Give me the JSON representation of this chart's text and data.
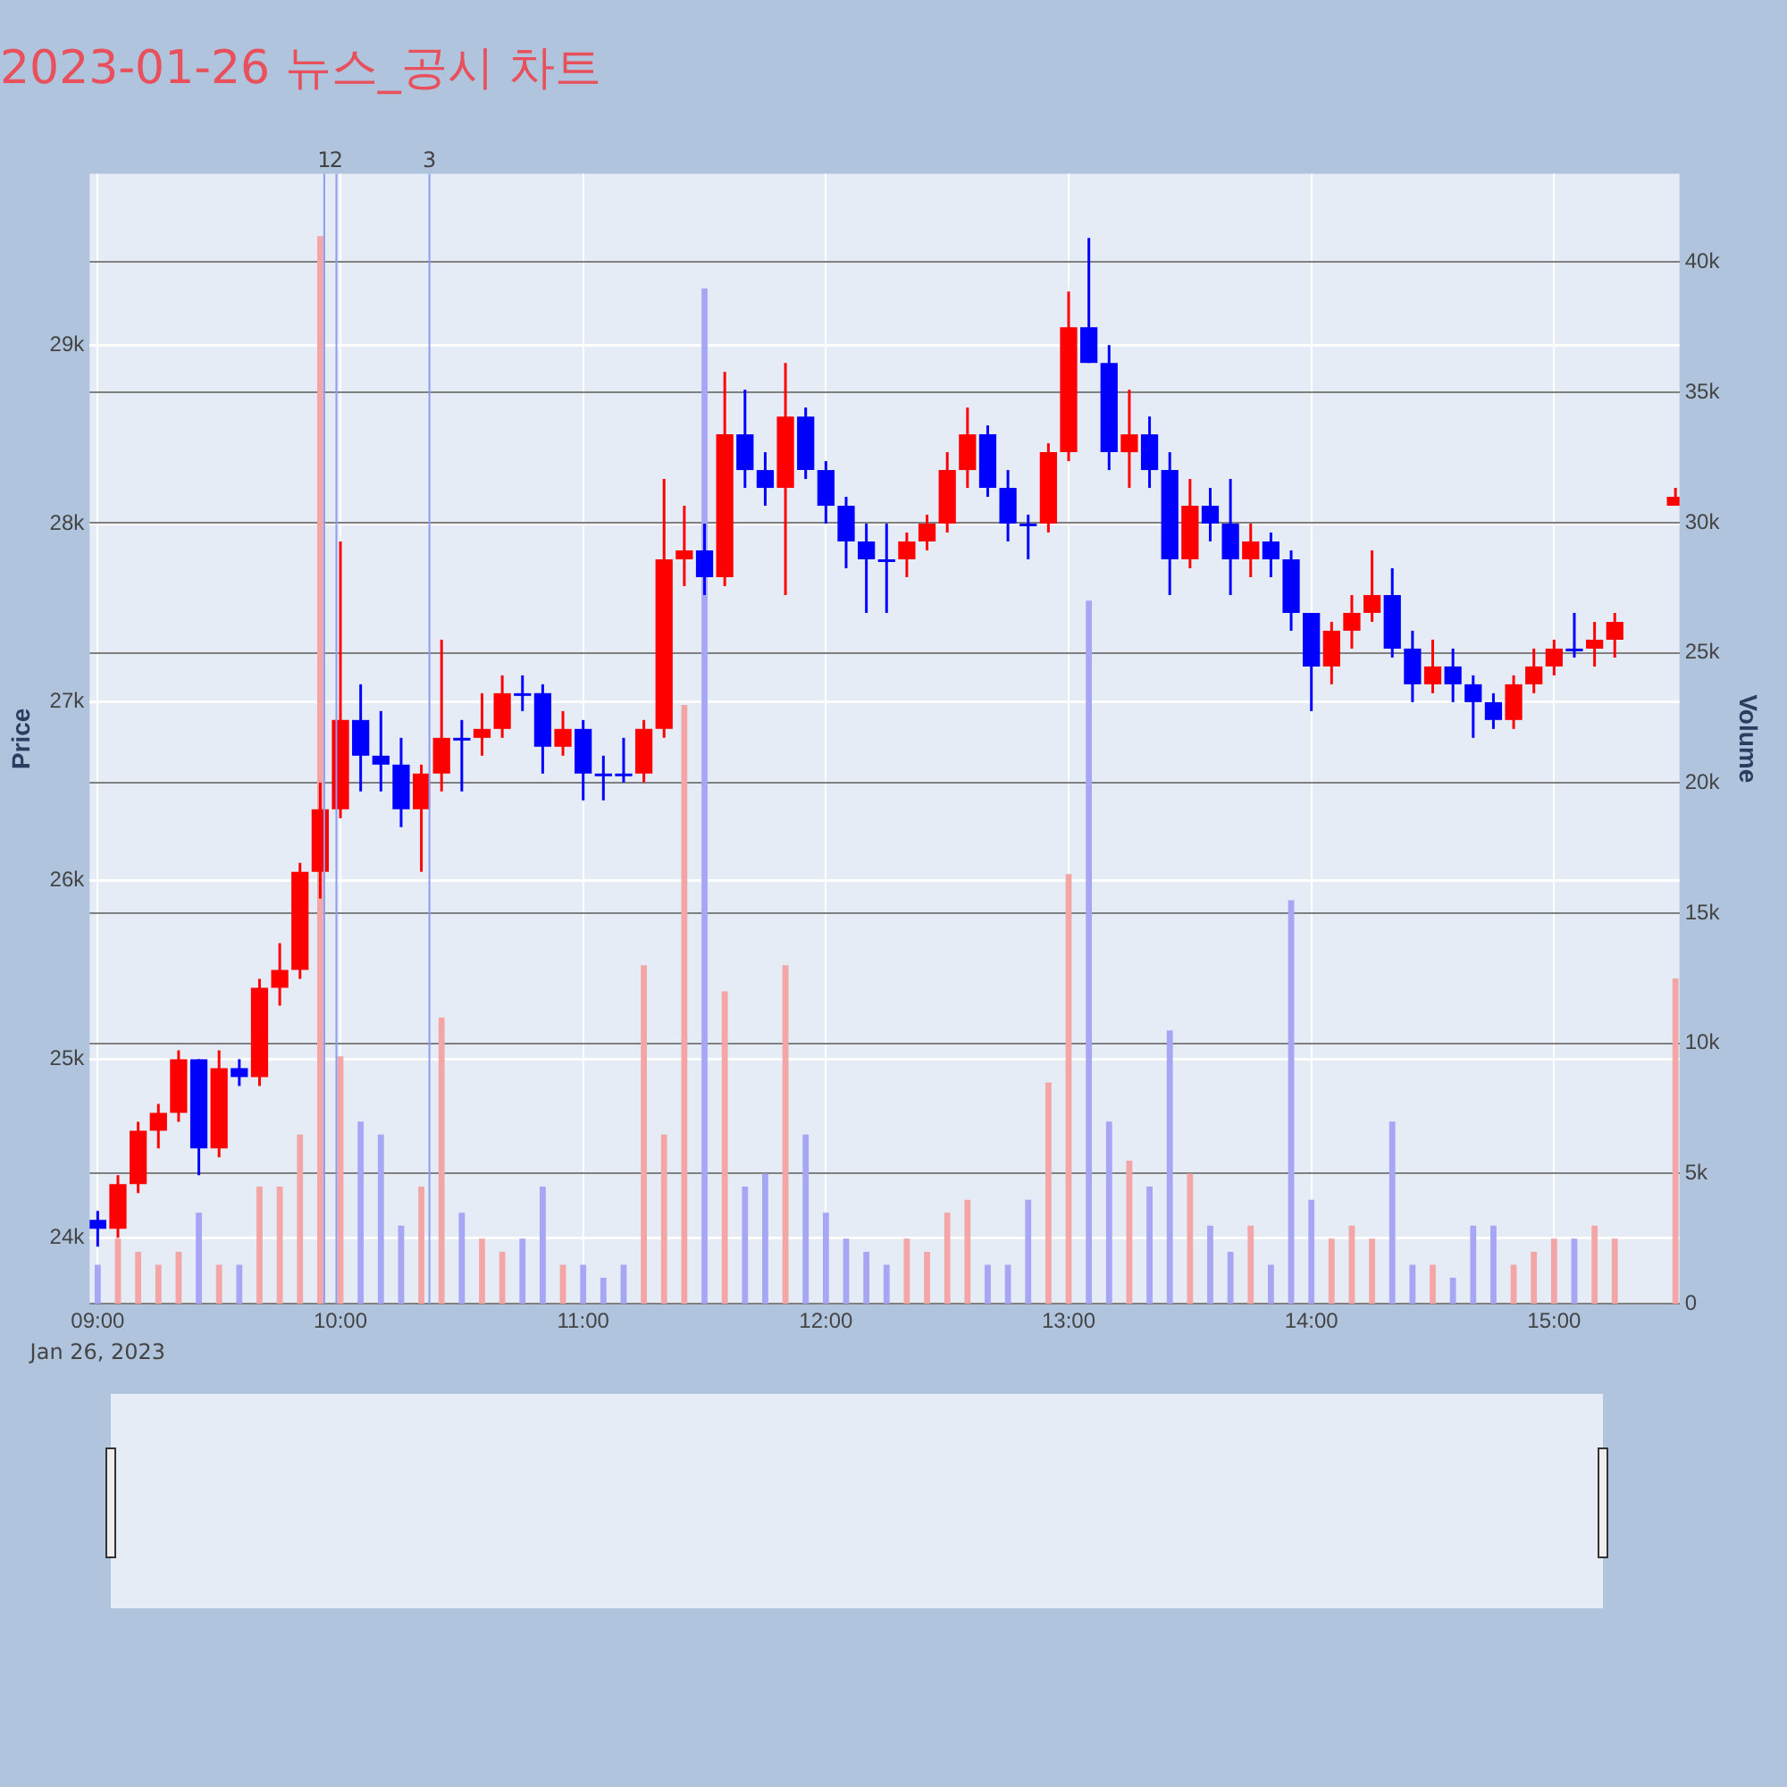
{
  "chart_data": {
    "type": "candlestick",
    "title": "2023-01-26 뉴스_공시 차트",
    "ylabel": "Price",
    "y2label": "Volume",
    "x": [
      "2023-01-26T09:00",
      "2023-01-26T09:05",
      "2023-01-26T09:10",
      "2023-01-26T09:15",
      "2023-01-26T09:20",
      "2023-01-26T09:25",
      "2023-01-26T09:30",
      "2023-01-26T09:35",
      "2023-01-26T09:40",
      "2023-01-26T09:45",
      "2023-01-26T09:50",
      "2023-01-26T09:55",
      "2023-01-26T10:00",
      "2023-01-26T10:05",
      "2023-01-26T10:10",
      "2023-01-26T10:15",
      "2023-01-26T10:20",
      "2023-01-26T10:25",
      "2023-01-26T10:30",
      "2023-01-26T10:35",
      "2023-01-26T10:40",
      "2023-01-26T10:45",
      "2023-01-26T10:50",
      "2023-01-26T10:55",
      "2023-01-26T11:00",
      "2023-01-26T11:05",
      "2023-01-26T11:10",
      "2023-01-26T11:15",
      "2023-01-26T11:20",
      "2023-01-26T11:25",
      "2023-01-26T11:30",
      "2023-01-26T11:35",
      "2023-01-26T11:40",
      "2023-01-26T11:45",
      "2023-01-26T11:50",
      "2023-01-26T11:55",
      "2023-01-26T12:00",
      "2023-01-26T12:05",
      "2023-01-26T12:10",
      "2023-01-26T12:15",
      "2023-01-26T12:20",
      "2023-01-26T12:25",
      "2023-01-26T12:30",
      "2023-01-26T12:35",
      "2023-01-26T12:40",
      "2023-01-26T12:45",
      "2023-01-26T12:50",
      "2023-01-26T12:55",
      "2023-01-26T13:00",
      "2023-01-26T13:05",
      "2023-01-26T13:10",
      "2023-01-26T13:15",
      "2023-01-26T13:20",
      "2023-01-26T13:25",
      "2023-01-26T13:30",
      "2023-01-26T13:35",
      "2023-01-26T13:40",
      "2023-01-26T13:45",
      "2023-01-26T13:50",
      "2023-01-26T13:55",
      "2023-01-26T14:00",
      "2023-01-26T14:05",
      "2023-01-26T14:10",
      "2023-01-26T14:15",
      "2023-01-26T14:20",
      "2023-01-26T14:25",
      "2023-01-26T14:30",
      "2023-01-26T14:35",
      "2023-01-26T14:40",
      "2023-01-26T14:45",
      "2023-01-26T14:50",
      "2023-01-26T14:55",
      "2023-01-26T15:00",
      "2023-01-26T15:05",
      "2023-01-26T15:10",
      "2023-01-26T15:15",
      "2023-01-26T15:30"
    ],
    "series": [
      {
        "type": "bar",
        "axis": "y2",
        "values": [
          1500,
          2500,
          2000,
          1500,
          2000,
          3500,
          1500,
          1500,
          4500,
          4500,
          6500,
          41000,
          9500,
          7000,
          6500,
          3000,
          4500,
          11000,
          3500,
          2500,
          2000,
          2500,
          4500,
          1500,
          1500,
          1000,
          1500,
          13000,
          6500,
          23000,
          39000,
          12000,
          4500,
          5000,
          13000,
          6500,
          3500,
          2500,
          2000,
          1500,
          2500,
          2000,
          3500,
          4000,
          1500,
          1500,
          4000,
          8500,
          16500,
          27000,
          7000,
          5500,
          4500,
          10500,
          5000,
          3000,
          2000,
          3000,
          1500,
          15500,
          4000,
          2500,
          3000,
          2500,
          7000,
          1500,
          1500,
          1000,
          3000,
          3000,
          1500,
          2000,
          2500,
          2500,
          3000,
          2500,
          12500
        ],
        "colors": [
          "#a6a6f4",
          "#f4a6a6",
          "#f4a6a6",
          "#f4a6a6",
          "#f4a6a6",
          "#a6a6f4",
          "#f4a6a6",
          "#a6a6f4",
          "#f4a6a6",
          "#f4a6a6",
          "#f4a6a6",
          "#f4a6a6",
          "#f4a6a6",
          "#a6a6f4",
          "#a6a6f4",
          "#a6a6f4",
          "#f4a6a6",
          "#f4a6a6",
          "#a6a6f4",
          "#f4a6a6",
          "#f4a6a6",
          "#a6a6f4",
          "#a6a6f4",
          "#f4a6a6",
          "#a6a6f4",
          "#a6a6f4",
          "#a6a6f4",
          "#f4a6a6",
          "#f4a6a6",
          "#f4a6a6",
          "#a6a6f4",
          "#f4a6a6",
          "#a6a6f4",
          "#a6a6f4",
          "#f4a6a6",
          "#a6a6f4",
          "#a6a6f4",
          "#a6a6f4",
          "#a6a6f4",
          "#a6a6f4",
          "#f4a6a6",
          "#f4a6a6",
          "#f4a6a6",
          "#f4a6a6",
          "#a6a6f4",
          "#a6a6f4",
          "#a6a6f4",
          "#f4a6a6",
          "#f4a6a6",
          "#a6a6f4",
          "#a6a6f4",
          "#f4a6a6",
          "#a6a6f4",
          "#a6a6f4",
          "#f4a6a6",
          "#a6a6f4",
          "#a6a6f4",
          "#f4a6a6",
          "#a6a6f4",
          "#a6a6f4",
          "#a6a6f4",
          "#f4a6a6",
          "#f4a6a6",
          "#f4a6a6",
          "#a6a6f4",
          "#a6a6f4",
          "#f4a6a6",
          "#a6a6f4",
          "#a6a6f4",
          "#a6a6f4",
          "#f4a6a6",
          "#f4a6a6",
          "#f4a6a6",
          "#a6a6f4",
          "#f4a6a6",
          "#f4a6a6",
          "#f4a6a6"
        ]
      },
      {
        "ohlc": [
          [
            24100,
            24150,
            23950,
            24050
          ],
          [
            24050,
            24350,
            24000,
            24300
          ],
          [
            24300,
            24650,
            24250,
            24600
          ],
          [
            24600,
            24750,
            24500,
            24700
          ],
          [
            24700,
            25050,
            24650,
            25000
          ],
          [
            25000,
            25000,
            24350,
            24500
          ],
          [
            24500,
            25050,
            24450,
            24950
          ],
          [
            24950,
            25000,
            24850,
            24900
          ],
          [
            24900,
            25450,
            24850,
            25400
          ],
          [
            25400,
            25650,
            25300,
            25500
          ],
          [
            25500,
            26100,
            25450,
            26050
          ],
          [
            26050,
            26550,
            25900,
            26400
          ],
          [
            26400,
            27900,
            26350,
            26900
          ],
          [
            26900,
            27100,
            26500,
            26700
          ],
          [
            26700,
            26950,
            26500,
            26650
          ],
          [
            26650,
            26800,
            26300,
            26400
          ],
          [
            26400,
            26650,
            26050,
            26600
          ],
          [
            26600,
            27350,
            26500,
            26800
          ],
          [
            26800,
            26900,
            26500,
            26800
          ],
          [
            26800,
            27050,
            26700,
            26850
          ],
          [
            26850,
            27150,
            26800,
            27050
          ],
          [
            27050,
            27150,
            26950,
            27050
          ],
          [
            27050,
            27100,
            26600,
            26750
          ],
          [
            26750,
            26950,
            26700,
            26850
          ],
          [
            26850,
            26900,
            26450,
            26600
          ],
          [
            26600,
            26700,
            26450,
            26600
          ],
          [
            26600,
            26800,
            26550,
            26600
          ],
          [
            26600,
            26900,
            26550,
            26850
          ],
          [
            26850,
            28250,
            26800,
            27800
          ],
          [
            27800,
            28100,
            27650,
            27850
          ],
          [
            27850,
            28000,
            27600,
            27700
          ],
          [
            27700,
            28850,
            27650,
            28500
          ],
          [
            28500,
            28750,
            28200,
            28300
          ],
          [
            28300,
            28400,
            28100,
            28200
          ],
          [
            28200,
            28900,
            27600,
            28600
          ],
          [
            28600,
            28650,
            28250,
            28300
          ],
          [
            28300,
            28350,
            28000,
            28100
          ],
          [
            28100,
            28150,
            27750,
            27900
          ],
          [
            27900,
            28000,
            27500,
            27800
          ],
          [
            27800,
            28000,
            27500,
            27800
          ],
          [
            27800,
            27950,
            27700,
            27900
          ],
          [
            27900,
            28050,
            27850,
            28000
          ],
          [
            28000,
            28400,
            27950,
            28300
          ],
          [
            28300,
            28650,
            28200,
            28500
          ],
          [
            28500,
            28550,
            28150,
            28200
          ],
          [
            28200,
            28300,
            27900,
            28000
          ],
          [
            28000,
            28050,
            27800,
            28000
          ],
          [
            28000,
            28450,
            27950,
            28400
          ],
          [
            28400,
            29300,
            28350,
            29100
          ],
          [
            29100,
            29600,
            28900,
            28900
          ],
          [
            28900,
            29000,
            28300,
            28400
          ],
          [
            28400,
            28750,
            28200,
            28500
          ],
          [
            28500,
            28600,
            28200,
            28300
          ],
          [
            28300,
            28400,
            27600,
            27800
          ],
          [
            27800,
            28250,
            27750,
            28100
          ],
          [
            28100,
            28200,
            27900,
            28000
          ],
          [
            28000,
            28250,
            27600,
            27800
          ],
          [
            27800,
            28000,
            27700,
            27900
          ],
          [
            27900,
            27950,
            27700,
            27800
          ],
          [
            27800,
            27850,
            27400,
            27500
          ],
          [
            27500,
            27500,
            26950,
            27200
          ],
          [
            27200,
            27450,
            27100,
            27400
          ],
          [
            27400,
            27600,
            27300,
            27500
          ],
          [
            27500,
            27850,
            27450,
            27600
          ],
          [
            27600,
            27750,
            27250,
            27300
          ],
          [
            27300,
            27400,
            27000,
            27100
          ],
          [
            27100,
            27350,
            27050,
            27200
          ],
          [
            27200,
            27300,
            27000,
            27100
          ],
          [
            27100,
            27150,
            26800,
            27000
          ],
          [
            27000,
            27050,
            26850,
            26900
          ],
          [
            26900,
            27150,
            26850,
            27100
          ],
          [
            27100,
            27300,
            27050,
            27200
          ],
          [
            27200,
            27350,
            27150,
            27300
          ],
          [
            27300,
            27500,
            27250,
            27300
          ],
          [
            27300,
            27450,
            27200,
            27350
          ],
          [
            27350,
            27500,
            27250,
            27450
          ],
          [
            28100,
            28200,
            28100,
            28150
          ]
        ],
        "colors": [
          "#0000ff",
          "#ff0000",
          "#ff0000",
          "#ff0000",
          "#ff0000",
          "#0000ff",
          "#ff0000",
          "#0000ff",
          "#ff0000",
          "#ff0000",
          "#ff0000",
          "#ff0000",
          "#ff0000",
          "#0000ff",
          "#0000ff",
          "#0000ff",
          "#ff0000",
          "#ff0000",
          "#0000ff",
          "#ff0000",
          "#ff0000",
          "#0000ff",
          "#0000ff",
          "#ff0000",
          "#0000ff",
          "#0000ff",
          "#0000ff",
          "#ff0000",
          "#ff0000",
          "#ff0000",
          "#0000ff",
          "#ff0000",
          "#0000ff",
          "#0000ff",
          "#ff0000",
          "#0000ff",
          "#0000ff",
          "#0000ff",
          "#0000ff",
          "#0000ff",
          "#ff0000",
          "#ff0000",
          "#ff0000",
          "#ff0000",
          "#0000ff",
          "#0000ff",
          "#0000ff",
          "#ff0000",
          "#ff0000",
          "#0000ff",
          "#0000ff",
          "#ff0000",
          "#0000ff",
          "#0000ff",
          "#ff0000",
          "#0000ff",
          "#0000ff",
          "#ff0000",
          "#0000ff",
          "#0000ff",
          "#0000ff",
          "#ff0000",
          "#ff0000",
          "#ff0000",
          "#0000ff",
          "#0000ff",
          "#ff0000",
          "#0000ff",
          "#0000ff",
          "#0000ff",
          "#ff0000",
          "#ff0000",
          "#ff0000",
          "#0000ff",
          "#ff0000",
          "#ff0000",
          "#ff0000"
        ]
      }
    ],
    "xlim": [
      "2023-01-26T08:58",
      "2023-01-26T15:31"
    ],
    "xticks": [
      {
        "value": "2023-01-26T09:00",
        "label": "09:00"
      },
      {
        "value": "2023-01-26T10:00",
        "label": "10:00"
      },
      {
        "value": "2023-01-26T11:00",
        "label": "11:00"
      },
      {
        "value": "2023-01-26T12:00",
        "label": "12:00"
      },
      {
        "value": "2023-01-26T13:00",
        "label": "13:00"
      },
      {
        "value": "2023-01-26T14:00",
        "label": "14:00"
      },
      {
        "value": "2023-01-26T15:00",
        "label": "15:00"
      }
    ],
    "ylim": [
      23630,
      29960
    ],
    "yticks": [
      {
        "value": 24000,
        "label": "24k"
      },
      {
        "value": 25000,
        "label": "25k"
      },
      {
        "value": 26000,
        "label": "26k"
      },
      {
        "value": 27000,
        "label": "27k"
      },
      {
        "value": 28000,
        "label": "28k"
      },
      {
        "value": 29000,
        "label": "29k"
      }
    ],
    "y2lim": [
      0,
      43400
    ],
    "y2ticks": [
      0,
      {
        "value": 5000,
        "label": "5k"
      },
      {
        "value": 10000,
        "label": "10k"
      },
      {
        "value": 15000,
        "label": "15k"
      },
      {
        "value": 20000,
        "label": "20k"
      },
      {
        "value": 25000,
        "label": "25k"
      },
      {
        "value": 30000,
        "label": "30k"
      },
      {
        "value": 35000,
        "label": "35k"
      },
      {
        "value": 40000,
        "label": "40k"
      }
    ],
    "ref_lines": [
      {
        "axis": "x",
        "value": "2023-01-26T09:56",
        "label": "1",
        "color": "#8c9cf2"
      },
      {
        "axis": "x",
        "value": "2023-01-26T09:59",
        "label": "2",
        "color": "#8c9cf2"
      },
      {
        "axis": "x",
        "value": "2023-01-26T10:22",
        "label": "3",
        "color": "#8c9cf2"
      }
    ],
    "annotations": [
      "Jan 26, 2023"
    ],
    "grid": true,
    "legend": false
  }
}
